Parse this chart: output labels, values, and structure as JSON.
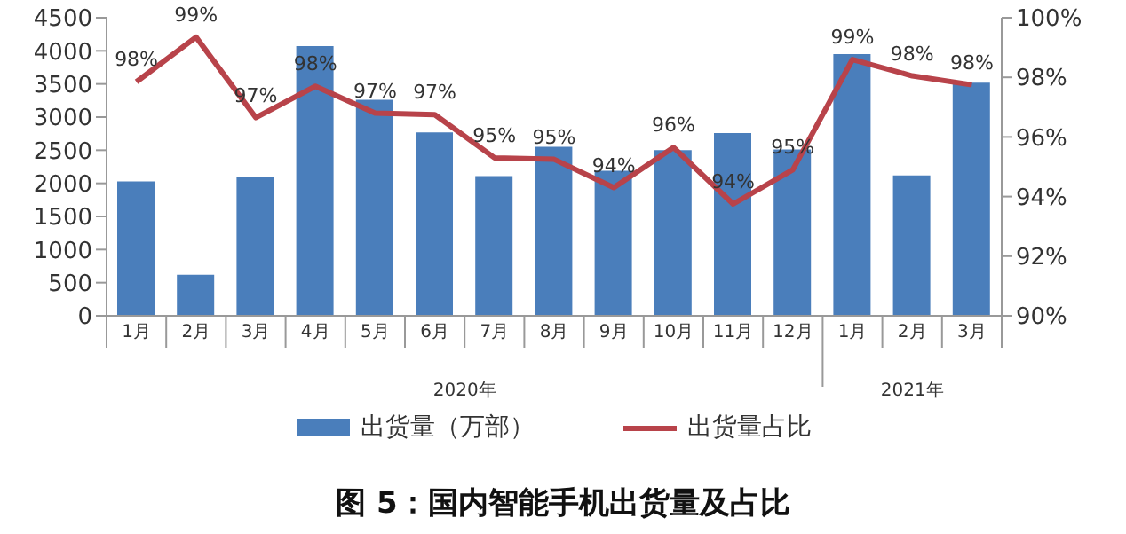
{
  "chart_data": {
    "type": "bar",
    "title": "图 5：国内智能手机出货量及占比",
    "categories": [
      "1月",
      "2月",
      "3月",
      "4月",
      "5月",
      "6月",
      "7月",
      "8月",
      "9月",
      "10月",
      "11月",
      "12月",
      "1月",
      "2月",
      "3月"
    ],
    "series": [
      {
        "name": "出货量（万部）",
        "color": "#4a7ebb",
        "values": [
          2030,
          620,
          2100,
          4070,
          3260,
          2770,
          2110,
          2550,
          2190,
          2500,
          2760,
          2510,
          3950,
          2120,
          3520
        ]
      },
      {
        "name": "出货量占比",
        "type": "line",
        "axis": "y2",
        "color": "#b8434a",
        "line_style": "solid",
        "values": [
          97.85,
          99.35,
          96.65,
          97.7,
          96.8,
          96.75,
          95.3,
          95.25,
          94.3,
          95.65,
          93.75,
          94.9,
          98.6,
          98.05,
          97.75
        ],
        "value_labels": [
          "98%",
          "99%",
          "97%",
          "98%",
          "97%",
          "97%",
          "95%",
          "95%",
          "94%",
          "96%",
          "94%",
          "95%",
          "99%",
          "98%",
          "98%"
        ]
      }
    ],
    "ylim": [
      0,
      4500
    ],
    "yticks": [
      0,
      500,
      1000,
      1500,
      2000,
      2500,
      3000,
      3500,
      4000,
      4500
    ],
    "y2lim": [
      90,
      100
    ],
    "y2ticks": [
      {
        "value": 90,
        "label": "90%"
      },
      {
        "value": 92,
        "label": "92%"
      },
      {
        "value": 94,
        "label": "94%"
      },
      {
        "value": 96,
        "label": "96%"
      },
      {
        "value": 98,
        "label": "98%"
      },
      {
        "value": 100,
        "label": "100%"
      }
    ],
    "annotations": [
      "2020年",
      "2021年"
    ],
    "grid": false,
    "legend": "bottom",
    "marker": "none"
  }
}
